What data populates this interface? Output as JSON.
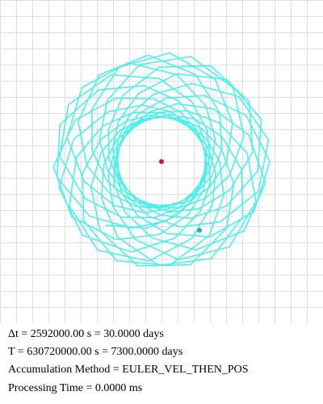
{
  "info": {
    "dt_text": "Δt = 2592000.00 s = 30.0000 days",
    "total_text": "T = 630720000.00 s = 7300.0000 days",
    "method_text": "Accumulation Method = EULER_VEL_THEN_POS",
    "processing_text": "Processing Time = 0.0000 ms"
  },
  "colors": {
    "grid": "#dedede",
    "trail": "#4feeee",
    "central_body": "#d0141b",
    "orbiting_body": "#1fb0b0"
  },
  "icons": {
    "central_body": "red-dot-icon",
    "orbiting_body": "teal-dot-icon"
  }
}
